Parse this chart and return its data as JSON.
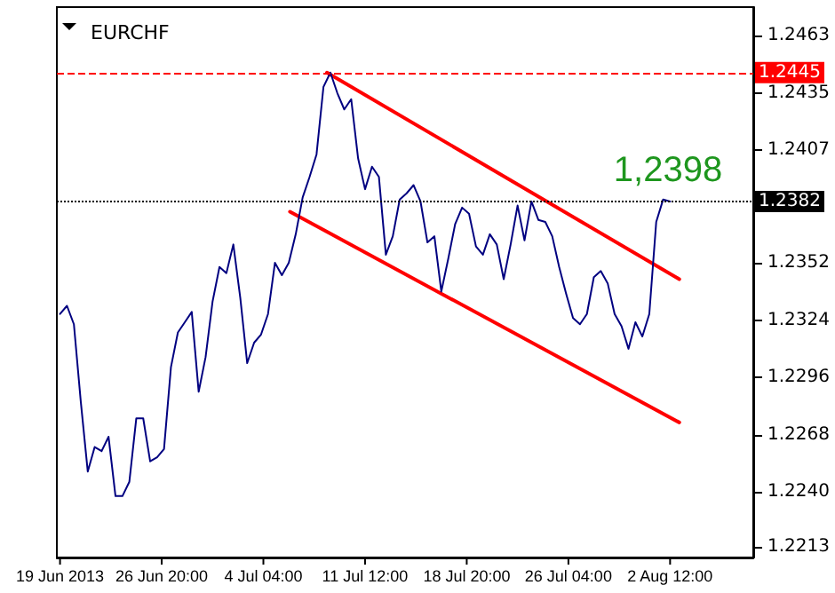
{
  "chart_data": {
    "type": "line",
    "title": "EURCHF",
    "x": [
      "2013-06-19T12:00",
      "2013-06-20T00:00",
      "2013-06-20T12:00",
      "2013-06-21T00:00",
      "2013-06-21T12:00",
      "2013-06-22T00:00",
      "2013-06-22T12:00",
      "2013-06-23T00:00",
      "2013-06-23T12:00",
      "2013-06-24T00:00",
      "2013-06-24T12:00",
      "2013-06-25T00:00",
      "2013-06-25T12:00",
      "2013-06-26T00:00",
      "2013-06-26T12:00",
      "2013-06-27T00:00",
      "2013-06-27T12:00",
      "2013-06-28T00:00",
      "2013-06-28T12:00",
      "2013-06-29T00:00",
      "2013-06-29T12:00",
      "2013-06-30T00:00",
      "2013-06-30T12:00",
      "2013-07-01T00:00",
      "2013-07-01T12:00",
      "2013-07-02T00:00",
      "2013-07-02T12:00",
      "2013-07-03T00:00",
      "2013-07-03T12:00",
      "2013-07-04T00:00",
      "2013-07-04T12:00",
      "2013-07-05T00:00",
      "2013-07-05T12:00",
      "2013-07-06T00:00",
      "2013-07-06T12:00",
      "2013-07-07T00:00",
      "2013-07-07T12:00",
      "2013-07-08T00:00",
      "2013-07-08T12:00",
      "2013-07-09T00:00",
      "2013-07-09T12:00",
      "2013-07-10T00:00",
      "2013-07-10T12:00",
      "2013-07-11T00:00",
      "2013-07-11T12:00",
      "2013-07-12T00:00",
      "2013-07-12T12:00",
      "2013-07-13T00:00",
      "2013-07-13T12:00",
      "2013-07-14T00:00",
      "2013-07-14T12:00",
      "2013-07-15T00:00",
      "2013-07-15T12:00",
      "2013-07-16T00:00",
      "2013-07-16T12:00",
      "2013-07-17T00:00",
      "2013-07-17T12:00",
      "2013-07-18T00:00",
      "2013-07-18T12:00",
      "2013-07-19T00:00",
      "2013-07-19T12:00",
      "2013-07-20T00:00",
      "2013-07-20T12:00",
      "2013-07-21T00:00",
      "2013-07-21T12:00",
      "2013-07-22T00:00",
      "2013-07-22T12:00",
      "2013-07-23T00:00",
      "2013-07-23T12:00",
      "2013-07-24T00:00",
      "2013-07-24T12:00",
      "2013-07-25T00:00",
      "2013-07-25T12:00",
      "2013-07-26T00:00",
      "2013-07-26T12:00",
      "2013-07-27T00:00",
      "2013-07-27T12:00",
      "2013-07-28T00:00",
      "2013-07-28T12:00",
      "2013-07-29T00:00",
      "2013-07-29T12:00",
      "2013-07-30T00:00",
      "2013-07-30T12:00",
      "2013-07-31T00:00",
      "2013-07-31T12:00",
      "2013-08-01T00:00",
      "2013-08-01T12:00",
      "2013-08-02T00:00",
      "2013-08-02T12:00"
    ],
    "series": [
      {
        "color": "#000080",
        "values": [
          1.2327,
          1.2331,
          1.2322,
          1.2284,
          1.225,
          1.2262,
          1.226,
          1.2267,
          1.2238,
          1.2238,
          1.2245,
          1.2276,
          1.2276,
          1.2255,
          1.2257,
          1.2261,
          1.2301,
          1.2318,
          1.2323,
          1.2328,
          1.2289,
          1.2306,
          1.2333,
          1.235,
          1.2347,
          1.2361,
          1.2335,
          1.2303,
          1.2313,
          1.2317,
          1.2327,
          1.2352,
          1.2346,
          1.2352,
          1.2366,
          1.2384,
          1.2394,
          1.2405,
          1.2438,
          1.2445,
          1.2435,
          1.2427,
          1.2432,
          1.2403,
          1.2388,
          1.2399,
          1.2394,
          1.2356,
          1.2365,
          1.2383,
          1.2386,
          1.239,
          1.2382,
          1.2362,
          1.2365,
          1.2338,
          1.2354,
          1.2371,
          1.2379,
          1.2376,
          1.236,
          1.2356,
          1.2366,
          1.2361,
          1.2344,
          1.2361,
          1.238,
          1.2363,
          1.2382,
          1.2373,
          1.2372,
          1.2365,
          1.235,
          1.2337,
          1.2325,
          1.2322,
          1.2327,
          1.2345,
          1.2348,
          1.2342,
          1.2327,
          1.2321,
          1.231,
          1.2323,
          1.2316,
          1.2327,
          1.2372,
          1.2383,
          1.2382
        ]
      },
      {
        "type": "line",
        "color": "#ff0000",
        "x": [
          "2013-07-08T18:00",
          "2013-08-03T04:00"
        ],
        "values": [
          1.2445,
          1.2344
        ]
      },
      {
        "type": "line",
        "color": "#ff0000",
        "x": [
          "2013-07-06T02:00",
          "2013-08-03T04:00"
        ],
        "values": [
          1.2377,
          1.2274
        ]
      }
    ],
    "ref_lines": [
      {
        "axis": "y",
        "value": 1.2445,
        "label": "1.2445",
        "color": "#ff0000",
        "line_style": "dashed"
      },
      {
        "axis": "y",
        "value": 1.2382,
        "label": "1.2382",
        "color": "#000000",
        "line_style": "dotted"
      }
    ],
    "annotations": [
      "1,2398"
    ],
    "xlim": [
      "2013-06-19T06:30",
      "2013-08-08T12:00"
    ],
    "xticks": [
      {
        "value": "2013-06-19T12:00",
        "label": "19 Jun 2013"
      },
      {
        "value": "2013-06-26T20:00",
        "label": "26 Jun 20:00"
      },
      {
        "value": "2013-07-04T04:00",
        "label": "4 Jul 04:00"
      },
      {
        "value": "2013-07-11T12:00",
        "label": "11 Jul 12:00"
      },
      {
        "value": "2013-07-18T20:00",
        "label": "18 Jul 20:00"
      },
      {
        "value": "2013-07-26T04:00",
        "label": "26 Jul 04:00"
      },
      {
        "value": "2013-08-02T12:00",
        "label": "2 Aug 12:00"
      }
    ],
    "ylim": [
      1.2208,
      1.2477
    ],
    "yticks": [
      1.2463,
      1.2435,
      1.2407,
      1.2352,
      1.2324,
      1.2296,
      1.2268,
      {
        "value": 1.224,
        "label": "1.2240"
      },
      1.2213
    ],
    "grid": false,
    "marker": "none",
    "line_style": "solid"
  }
}
